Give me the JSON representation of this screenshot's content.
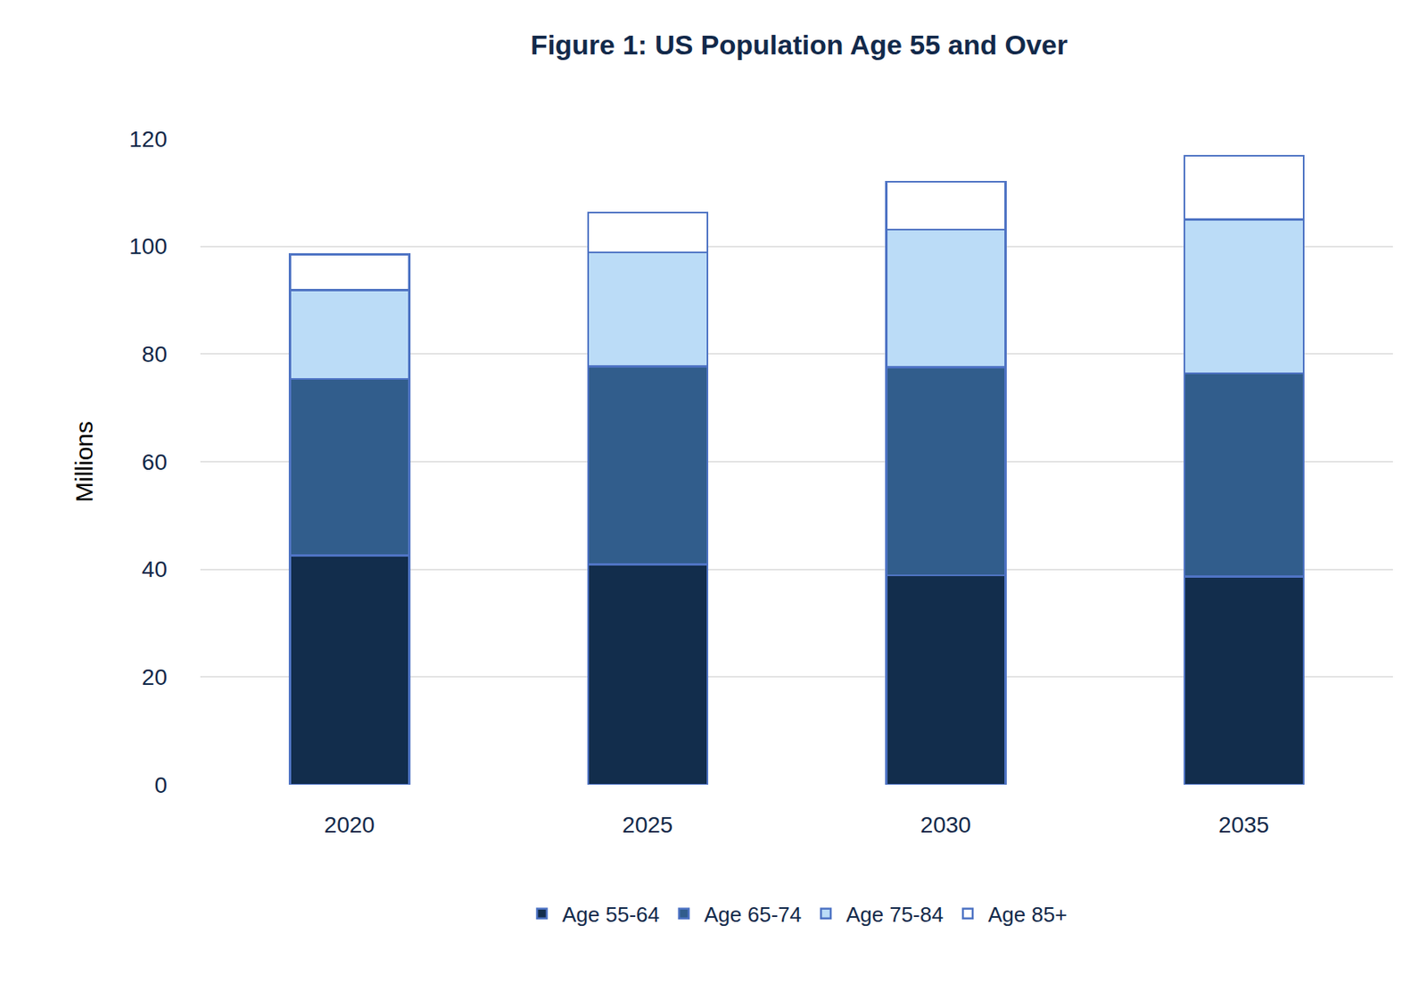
{
  "chart_data": {
    "type": "bar",
    "title": "Figure 1: US Population Age 55 and Over",
    "y_label": "Millions",
    "categories": [
      "2020",
      "2025",
      "2030",
      "2035"
    ],
    "series": [
      {
        "name": "Age 55-64",
        "color": "#122d4c",
        "values": [
          42.6,
          40.9,
          38.9,
          38.7
        ]
      },
      {
        "name": "Age 65-74",
        "color": "#315d8c",
        "values": [
          32.8,
          36.8,
          38.7,
          37.7
        ]
      },
      {
        "name": "Age 75-84",
        "color": "#bbdcf7",
        "values": [
          16.5,
          21.2,
          25.5,
          28.6
        ]
      },
      {
        "name": "Age 85+",
        "color": "#ffffff",
        "values": [
          6.6,
          7.4,
          8.9,
          11.8
        ]
      }
    ],
    "stacked": true,
    "ylim": [
      0,
      120
    ],
    "yticks": [
      0,
      20,
      40,
      60,
      80,
      100,
      120
    ],
    "grid": true,
    "legend": "bottom"
  }
}
